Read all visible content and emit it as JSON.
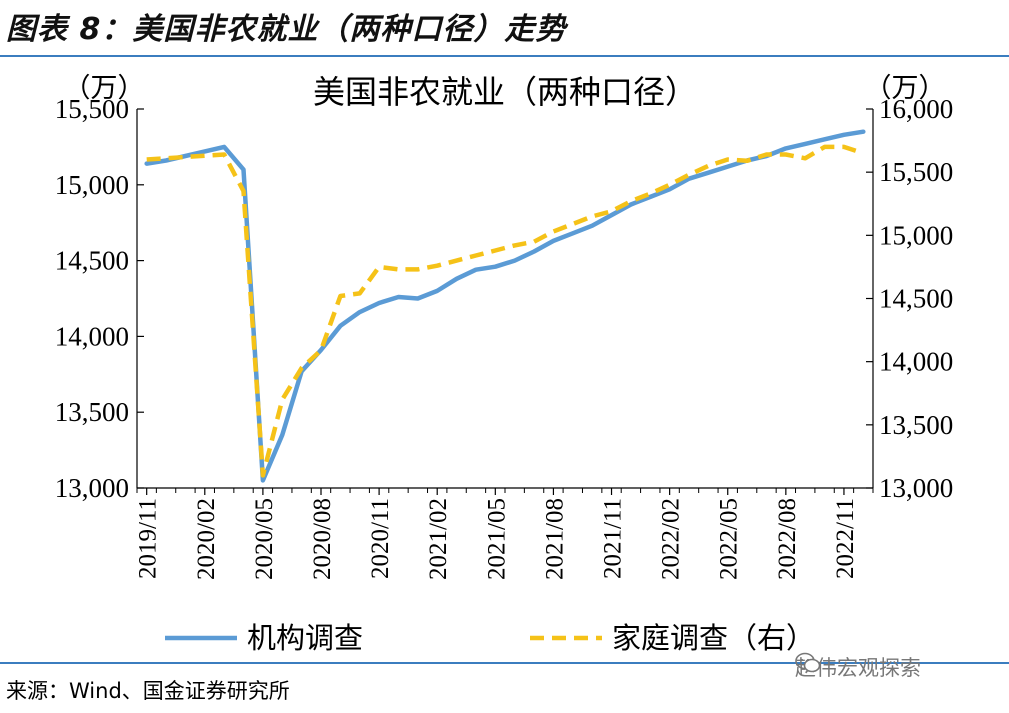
{
  "figure": {
    "label": "图表 8：美国非农就业（两种口径）走势",
    "source": "来源：Wind、国金证券研究所",
    "watermark": "赵伟宏观探索"
  },
  "chart_data": {
    "type": "line",
    "title": "美国非农就业（两种口径）",
    "y_unit_left": "（万）",
    "y_unit_right": "（万）",
    "ylim_left": [
      13000,
      15500
    ],
    "ylim_right": [
      13000,
      16000
    ],
    "yticks_left": [
      "13,000",
      "13,500",
      "14,000",
      "14,500",
      "15,000",
      "15,500"
    ],
    "yticks_right": [
      "13,000",
      "13,500",
      "14,000",
      "14,500",
      "15,000",
      "15,500",
      "16,000"
    ],
    "x": [
      "2019/11",
      "2019/12",
      "2020/01",
      "2020/02",
      "2020/03",
      "2020/04",
      "2020/05",
      "2020/06",
      "2020/07",
      "2020/08",
      "2020/09",
      "2020/10",
      "2020/11",
      "2020/12",
      "2021/01",
      "2021/02",
      "2021/03",
      "2021/04",
      "2021/05",
      "2021/06",
      "2021/07",
      "2021/08",
      "2021/09",
      "2021/10",
      "2021/11",
      "2021/12",
      "2022/01",
      "2022/02",
      "2022/03",
      "2022/04",
      "2022/05",
      "2022/06",
      "2022/07",
      "2022/08",
      "2022/09",
      "2022/10",
      "2022/11",
      "2022/12"
    ],
    "xtick_labels": [
      "2019/11",
      "2020/02",
      "2020/05",
      "2020/08",
      "2020/11",
      "2021/02",
      "2021/05",
      "2021/08",
      "2021/11",
      "2022/02",
      "2022/05",
      "2022/08",
      "2022/11"
    ],
    "series": [
      {
        "name": "机构调查",
        "axis": "left",
        "color": "#5b9bd5",
        "style": "solid",
        "values": [
          15140,
          15160,
          15190,
          15220,
          15250,
          15100,
          13050,
          13350,
          13770,
          13910,
          14070,
          14160,
          14220,
          14260,
          14250,
          14300,
          14380,
          14440,
          14460,
          14500,
          14560,
          14630,
          14680,
          14730,
          14800,
          14870,
          14920,
          14970,
          15040,
          15080,
          15120,
          15160,
          15190,
          15240,
          15270,
          15300,
          15330,
          15350
        ]
      },
      {
        "name": "家庭调查（右）",
        "axis": "right",
        "color": "#f5c218",
        "style": "dashed",
        "values": [
          15600,
          15610,
          15620,
          15630,
          15640,
          15350,
          13100,
          13700,
          13950,
          14090,
          14520,
          14540,
          14750,
          14730,
          14730,
          14760,
          14800,
          14840,
          14880,
          14920,
          14950,
          15030,
          15090,
          15150,
          15190,
          15270,
          15330,
          15400,
          15480,
          15550,
          15600,
          15590,
          15640,
          15640,
          15610,
          15700,
          15700,
          15650
        ]
      }
    ],
    "legend_position": "bottom",
    "grid": false
  }
}
